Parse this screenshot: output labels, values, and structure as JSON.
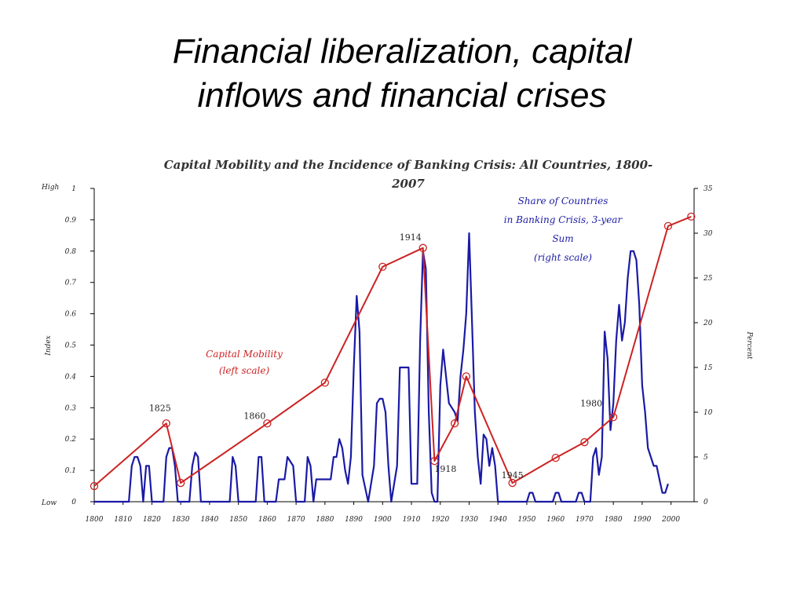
{
  "slide": {
    "title_line1": "Financial liberalization, capital",
    "title_line2": "inflows and financial crises"
  },
  "chart_data": {
    "type": "line",
    "title_line1": "Capital Mobility and the Incidence of Banking Crisis: All Countries, 1800-",
    "title_line2": "2007",
    "xlim": [
      1800,
      2008
    ],
    "x_ticks": [
      "1800",
      "1810",
      "1820",
      "1830",
      "1840",
      "1850",
      "1860",
      "1870",
      "1880",
      "1890",
      "1900",
      "1910",
      "1920",
      "1930",
      "1940",
      "1950",
      "1960",
      "1970",
      "1980",
      "1990",
      "2000"
    ],
    "left_axis": {
      "label": "Index",
      "ylim": [
        0,
        1
      ],
      "ticks": [
        "0",
        "0.1",
        "0.2",
        "0.3",
        "0.4",
        "0.5",
        "0.6",
        "0.7",
        "0.8",
        "0.9",
        "1"
      ],
      "high_label": "High",
      "low_label": "Low"
    },
    "right_axis": {
      "label": "Percent",
      "ylim": [
        0,
        35
      ],
      "ticks": [
        "0",
        "5",
        "10",
        "15",
        "20",
        "25",
        "30",
        "35"
      ]
    },
    "series": [
      {
        "name": "Capital Mobility (left scale)",
        "axis": "left",
        "color": "#cc2222",
        "points": [
          [
            1800,
            0.05
          ],
          [
            1825,
            0.25
          ],
          [
            1830,
            0.06
          ],
          [
            1860,
            0.25
          ],
          [
            1880,
            0.38
          ],
          [
            1900,
            0.75
          ],
          [
            1914,
            0.81
          ],
          [
            1918,
            0.13
          ],
          [
            1925,
            0.25
          ],
          [
            1929,
            0.4
          ],
          [
            1945,
            0.06
          ],
          [
            1960,
            0.14
          ],
          [
            1970,
            0.19
          ],
          [
            1980,
            0.27
          ],
          [
            1999,
            0.88
          ],
          [
            2007,
            0.91
          ]
        ]
      },
      {
        "name": "Share of Countries in Banking Crisis, 3-year Sum (right scale)",
        "axis": "right",
        "color": "#1a1aa6",
        "points": [
          [
            1800,
            0
          ],
          [
            1812,
            0
          ],
          [
            1813,
            4
          ],
          [
            1814,
            5
          ],
          [
            1815,
            5
          ],
          [
            1816,
            4
          ],
          [
            1817,
            0
          ],
          [
            1818,
            4
          ],
          [
            1819,
            4
          ],
          [
            1820,
            0
          ],
          [
            1824,
            0
          ],
          [
            1825,
            5
          ],
          [
            1826,
            6
          ],
          [
            1827,
            6
          ],
          [
            1828,
            4
          ],
          [
            1829,
            0
          ],
          [
            1833,
            0
          ],
          [
            1834,
            4
          ],
          [
            1835,
            5.5
          ],
          [
            1836,
            5
          ],
          [
            1837,
            0
          ],
          [
            1847,
            0
          ],
          [
            1848,
            5
          ],
          [
            1849,
            4
          ],
          [
            1850,
            0
          ],
          [
            1856,
            0
          ],
          [
            1857,
            5
          ],
          [
            1858,
            5
          ],
          [
            1859,
            0
          ],
          [
            1863,
            0
          ],
          [
            1864,
            2.5
          ],
          [
            1866,
            2.5
          ],
          [
            1867,
            5
          ],
          [
            1869,
            4
          ],
          [
            1870,
            0
          ],
          [
            1873,
            0
          ],
          [
            1874,
            5
          ],
          [
            1875,
            4
          ],
          [
            1876,
            0
          ],
          [
            1877,
            2.5
          ],
          [
            1882,
            2.5
          ],
          [
            1883,
            5
          ],
          [
            1884,
            5
          ],
          [
            1885,
            7
          ],
          [
            1886,
            6
          ],
          [
            1887,
            3.5
          ],
          [
            1888,
            2
          ],
          [
            1889,
            5
          ],
          [
            1890,
            15
          ],
          [
            1891,
            23
          ],
          [
            1892,
            19
          ],
          [
            1893,
            3
          ],
          [
            1895,
            0
          ],
          [
            1897,
            4
          ],
          [
            1898,
            11
          ],
          [
            1899,
            11.5
          ],
          [
            1900,
            11.5
          ],
          [
            1901,
            10
          ],
          [
            1902,
            4
          ],
          [
            1903,
            0
          ],
          [
            1905,
            4
          ],
          [
            1906,
            15
          ],
          [
            1909,
            15
          ],
          [
            1910,
            2
          ],
          [
            1912,
            2
          ],
          [
            1913,
            18
          ],
          [
            1914,
            28
          ],
          [
            1915,
            26
          ],
          [
            1916,
            10
          ],
          [
            1917,
            1
          ],
          [
            1918,
            0
          ],
          [
            1919,
            0
          ],
          [
            1920,
            13
          ],
          [
            1921,
            17
          ],
          [
            1922,
            14
          ],
          [
            1923,
            11
          ],
          [
            1924,
            10.5
          ],
          [
            1925,
            10
          ],
          [
            1926,
            9
          ],
          [
            1927,
            14
          ],
          [
            1928,
            17
          ],
          [
            1929,
            21
          ],
          [
            1930,
            30
          ],
          [
            1931,
            20
          ],
          [
            1932,
            10
          ],
          [
            1933,
            5
          ],
          [
            1934,
            2
          ],
          [
            1935,
            7.5
          ],
          [
            1936,
            7
          ],
          [
            1937,
            4
          ],
          [
            1938,
            6
          ],
          [
            1939,
            4
          ],
          [
            1940,
            0
          ],
          [
            1950,
            0
          ],
          [
            1951,
            1
          ],
          [
            1952,
            1
          ],
          [
            1953,
            0
          ],
          [
            1959,
            0
          ],
          [
            1960,
            1
          ],
          [
            1961,
            1
          ],
          [
            1962,
            0
          ],
          [
            1967,
            0
          ],
          [
            1968,
            1
          ],
          [
            1969,
            1
          ],
          [
            1970,
            0
          ],
          [
            1972,
            0
          ],
          [
            1973,
            5
          ],
          [
            1974,
            6
          ],
          [
            1975,
            3
          ],
          [
            1976,
            5
          ],
          [
            1977,
            19
          ],
          [
            1978,
            16
          ],
          [
            1979,
            8
          ],
          [
            1980,
            11
          ],
          [
            1981,
            18
          ],
          [
            1982,
            22
          ],
          [
            1983,
            18
          ],
          [
            1984,
            20
          ],
          [
            1985,
            25
          ],
          [
            1986,
            28
          ],
          [
            1987,
            28
          ],
          [
            1988,
            27
          ],
          [
            1989,
            22
          ],
          [
            1990,
            13
          ],
          [
            1991,
            10
          ],
          [
            1992,
            6
          ],
          [
            1993,
            5
          ],
          [
            1994,
            4
          ],
          [
            1995,
            4
          ],
          [
            1996,
            2.5
          ],
          [
            1997,
            1
          ],
          [
            1998,
            1
          ],
          [
            1999,
            2
          ]
        ]
      }
    ],
    "point_labels": [
      {
        "text": "1825",
        "x": 1825,
        "y": 0.25
      },
      {
        "text": "1860",
        "x": 1860,
        "y": 0.25
      },
      {
        "text": "1914",
        "x": 1914,
        "y": 0.81
      },
      {
        "text": "1918",
        "x": 1918,
        "y": 0.13
      },
      {
        "text": "1945",
        "x": 1945,
        "y": 0.06
      },
      {
        "text": "1980",
        "x": 1980,
        "y": 0.27
      }
    ],
    "annotations": {
      "capital_mobility": [
        "Capital Mobility",
        "(left scale)"
      ],
      "share_crisis": [
        "Share of Countries",
        "in Banking Crisis, 3-year",
        "Sum",
        "(right scale)"
      ]
    }
  }
}
